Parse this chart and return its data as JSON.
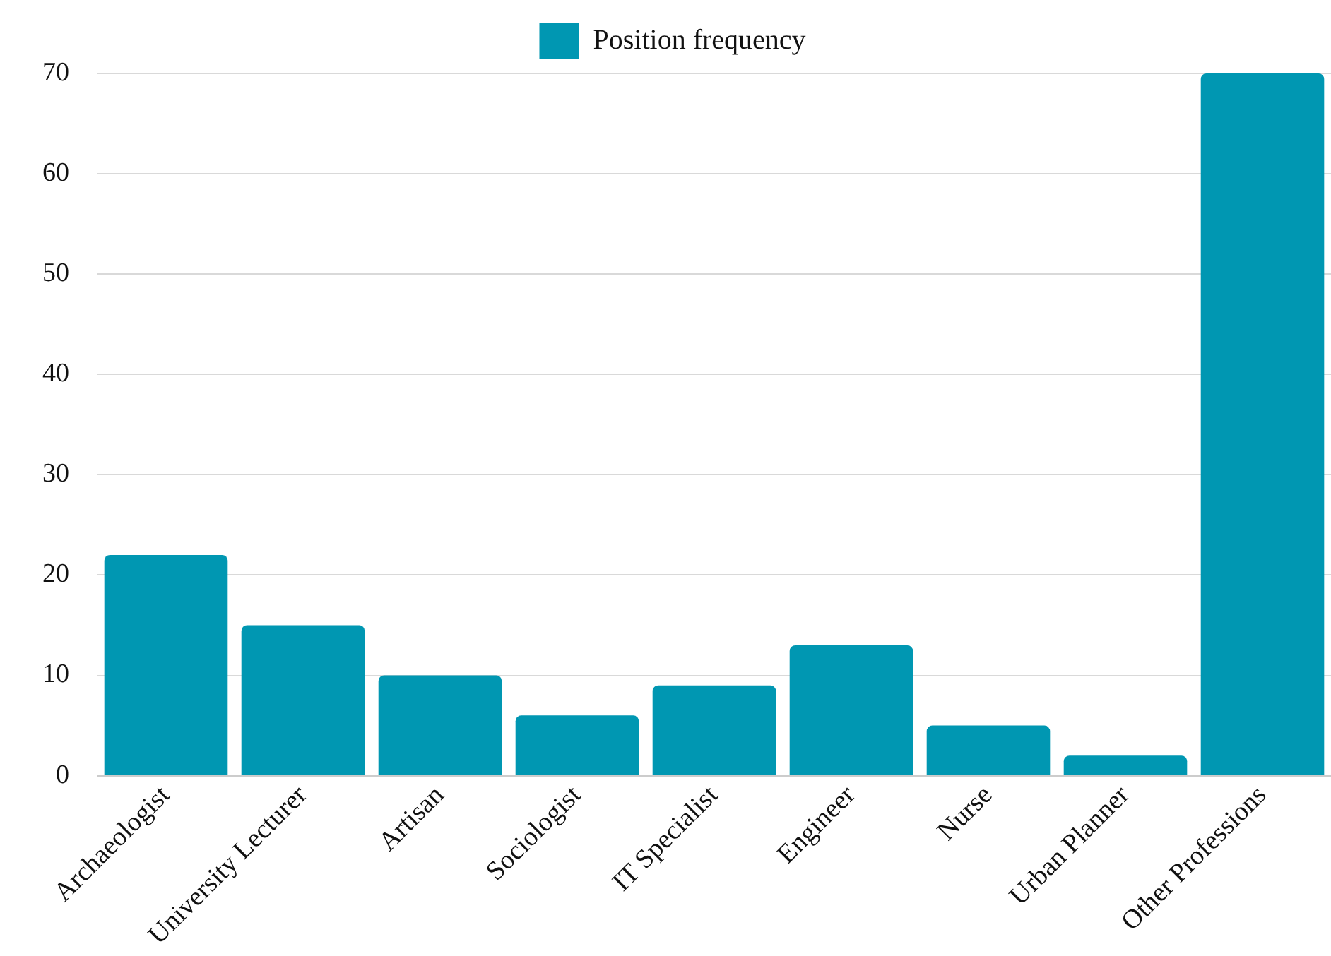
{
  "chart_data": {
    "type": "bar",
    "categories": [
      "Archaeologist",
      "University Lecturer",
      "Artisan",
      "Sociologist",
      "IT Specialist",
      "Engineer",
      "Nurse",
      "Urban Planner",
      "Other Professions"
    ],
    "series": [
      {
        "name": "Position frequency",
        "color": "#0097b2",
        "values": [
          22,
          15,
          10,
          6,
          9,
          13,
          5,
          2,
          70
        ]
      }
    ],
    "ylim": [
      0,
      70
    ],
    "yticks": [
      0,
      10,
      20,
      30,
      40,
      50,
      60,
      70
    ],
    "grid": "y",
    "legend": "top"
  }
}
